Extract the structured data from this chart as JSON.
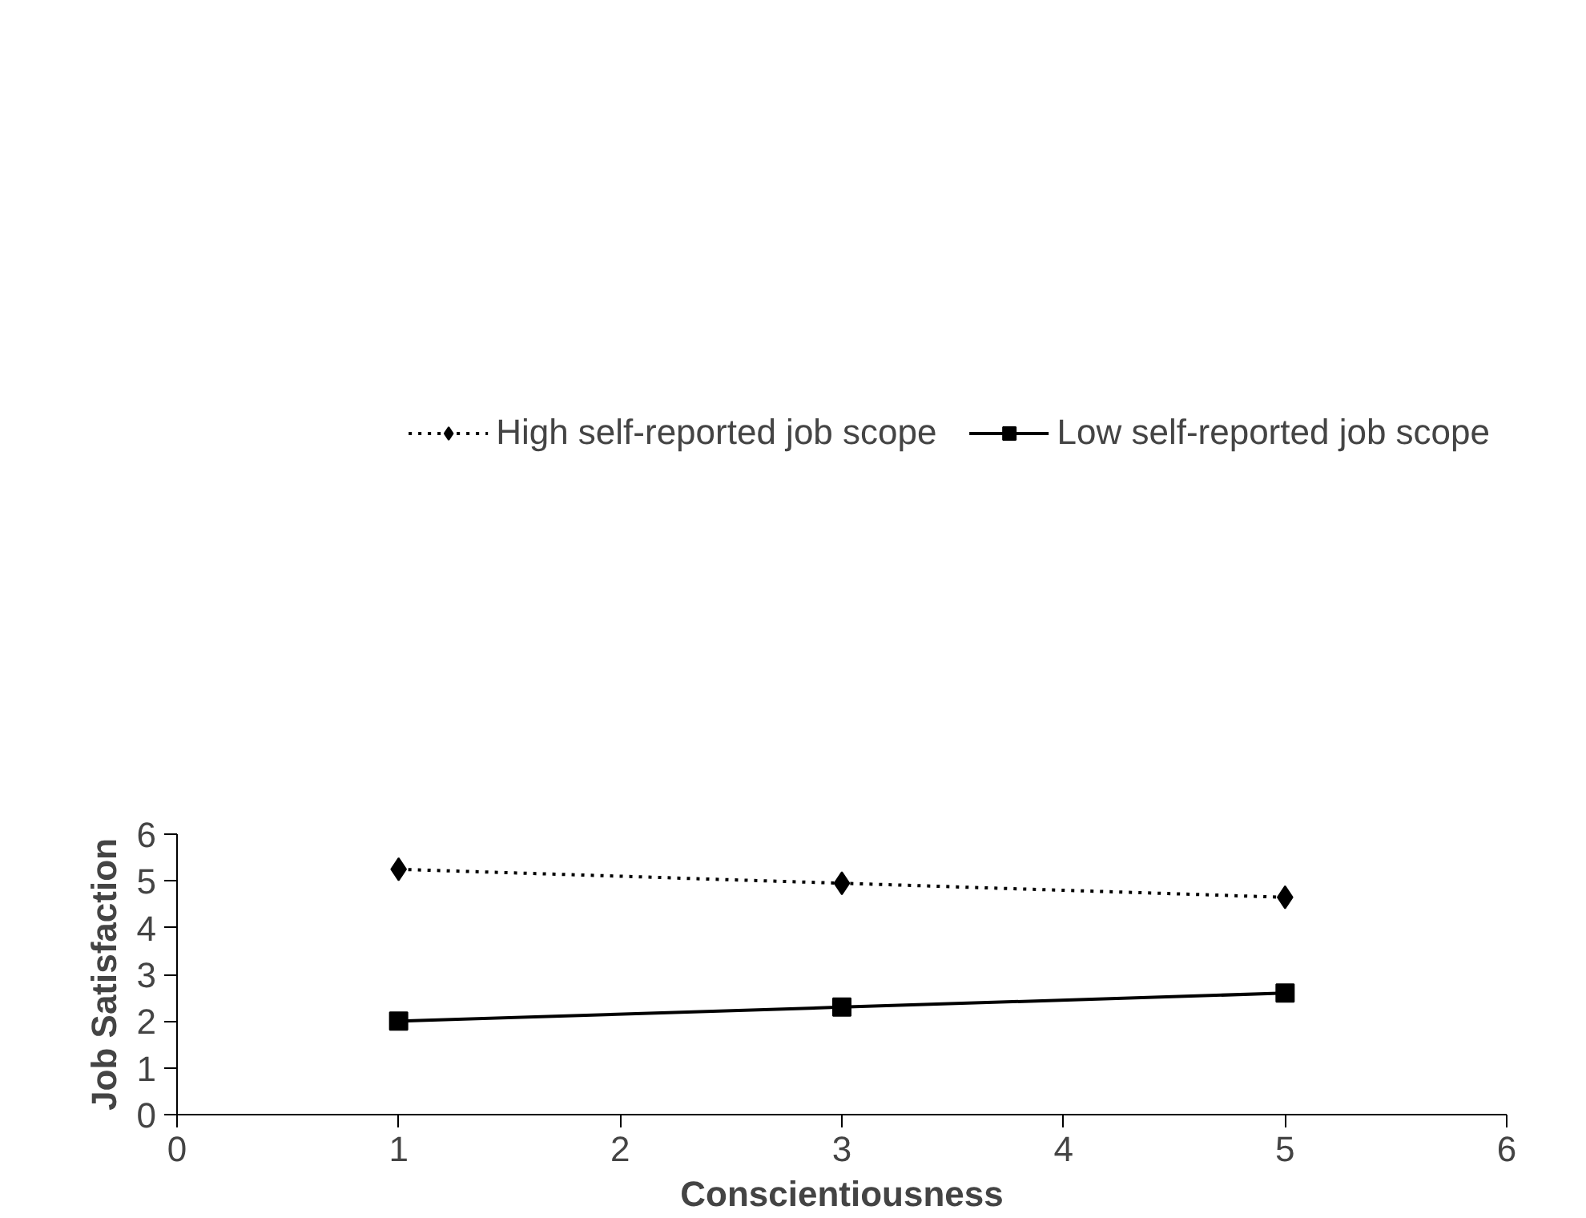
{
  "chart_data": {
    "type": "line",
    "xlabel": "Conscientiousness",
    "ylabel": "Job Satisfaction",
    "x": [
      1,
      3,
      5
    ],
    "series": [
      {
        "name": "High self-reported job scope",
        "color": "#000000",
        "values": [
          5.25,
          4.95,
          4.65
        ],
        "marker": "diamond",
        "line_style": "dotted"
      },
      {
        "name": "Low self-reported job scope",
        "color": "#000000",
        "values": [
          2.0,
          2.3,
          2.6
        ],
        "marker": "square",
        "line_style": "solid"
      }
    ],
    "xlim": [
      0,
      6
    ],
    "xticks": [
      0,
      1,
      2,
      3,
      4,
      5,
      6
    ],
    "ylim": [
      0,
      6
    ],
    "yticks": [
      0,
      1,
      2,
      3,
      4,
      5,
      6
    ],
    "grid": false,
    "legend": "top"
  }
}
